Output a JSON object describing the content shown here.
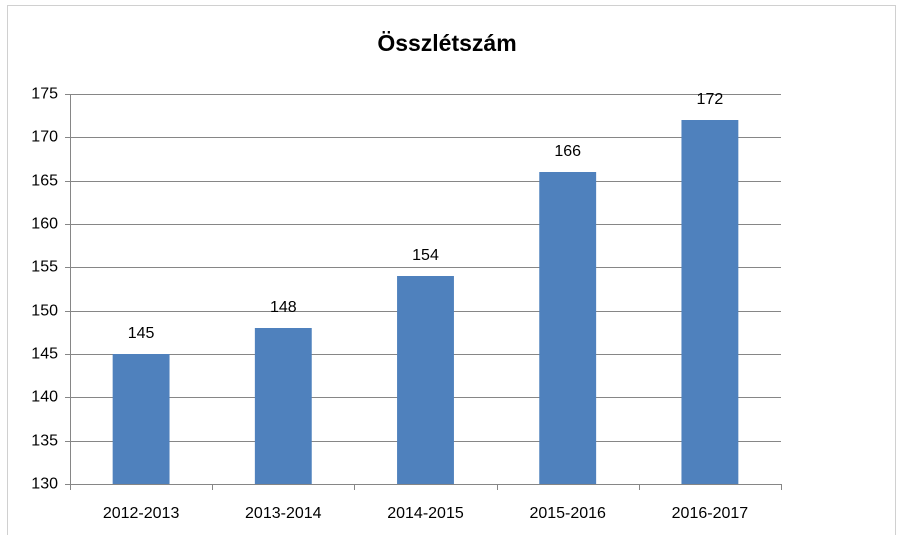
{
  "chart_data": {
    "type": "bar",
    "title": "Összlétszám",
    "categories": [
      "2012-2013",
      "2013-2014",
      "2014-2015",
      "2015-2016",
      "2016-2017"
    ],
    "values": [
      145,
      148,
      154,
      166,
      172
    ],
    "color": "#4f81bd",
    "ylim": [
      130,
      175
    ],
    "yticks": [
      130,
      135,
      140,
      145,
      150,
      155,
      160,
      165,
      170,
      175
    ],
    "grid": true
  }
}
